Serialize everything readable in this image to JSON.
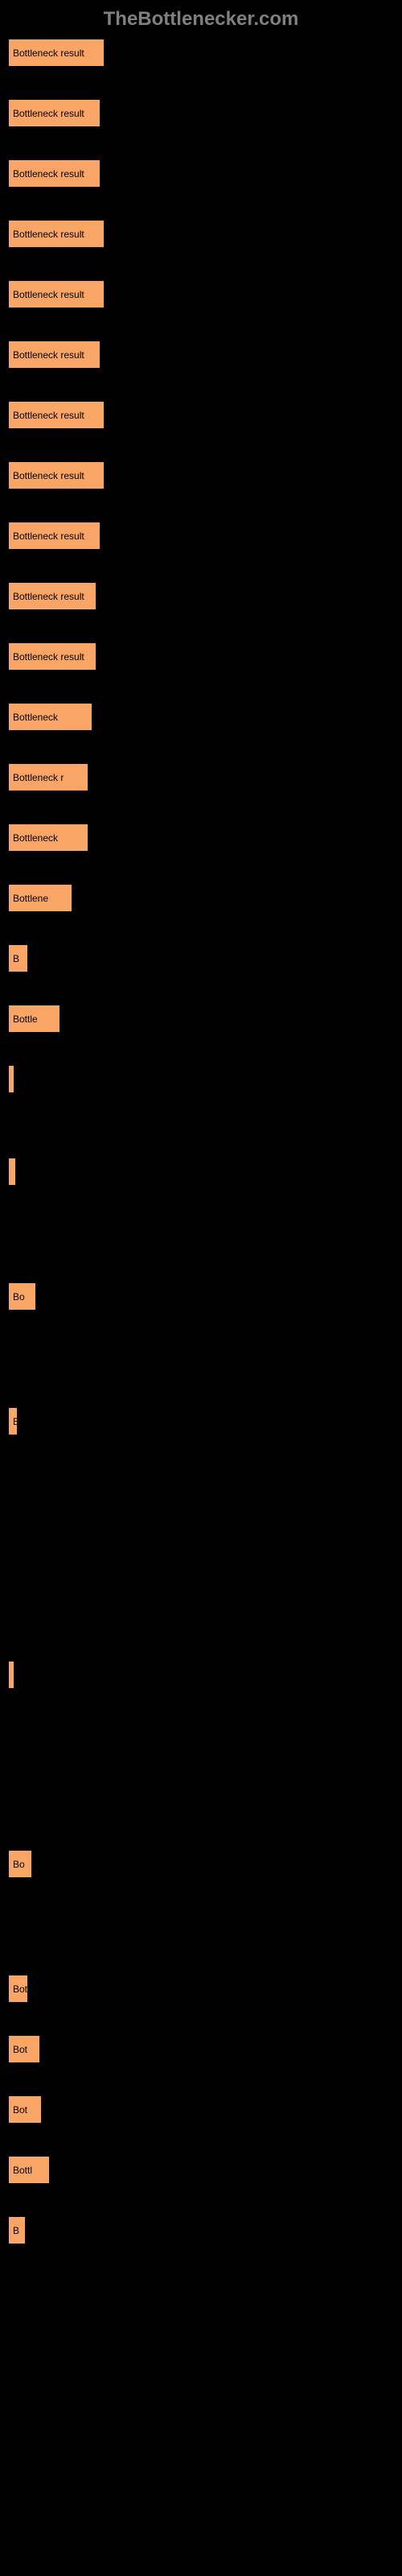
{
  "header": {
    "title": "TheBottlenecker.com"
  },
  "chart": {
    "type": "bar",
    "bar_color": "#f9a566",
    "background_color": "#000000",
    "text_color": "#000000",
    "header_color": "#808080",
    "bars": [
      {
        "label": "Bottleneck result",
        "width": 120
      },
      {
        "label": "Bottleneck result",
        "width": 115
      },
      {
        "label": "Bottleneck result",
        "width": 115
      },
      {
        "label": "Bottleneck result",
        "width": 120
      },
      {
        "label": "Bottleneck result",
        "width": 120
      },
      {
        "label": "Bottleneck result",
        "width": 115
      },
      {
        "label": "Bottleneck result",
        "width": 120
      },
      {
        "label": "Bottleneck result",
        "width": 120
      },
      {
        "label": "Bottleneck result",
        "width": 115
      },
      {
        "label": "Bottleneck result",
        "width": 110
      },
      {
        "label": "Bottleneck result",
        "width": 110
      },
      {
        "label": "Bottleneck",
        "width": 105
      },
      {
        "label": "Bottleneck r",
        "width": 100
      },
      {
        "label": "Bottleneck",
        "width": 100
      },
      {
        "label": "Bottlene",
        "width": 80
      },
      {
        "label": "B",
        "width": 25
      },
      {
        "label": "Bottle",
        "width": 65
      },
      {
        "label": "",
        "width": 8
      },
      {
        "label": "",
        "width": 10
      },
      {
        "label": "Bo",
        "width": 35
      },
      {
        "label": "B",
        "width": 12
      },
      {
        "label": "",
        "width": 8
      },
      {
        "label": "Bo",
        "width": 30
      },
      {
        "label": "Bottleneck",
        "width": 25
      },
      {
        "label": "Bot",
        "width": 40
      },
      {
        "label": "Bot",
        "width": 42
      },
      {
        "label": "Bottl",
        "width": 52
      },
      {
        "label": "B",
        "width": 22
      }
    ],
    "special_gaps": {
      "17": 80,
      "18": 120,
      "19": 120,
      "20": 280,
      "21": 200,
      "22": 120
    }
  }
}
